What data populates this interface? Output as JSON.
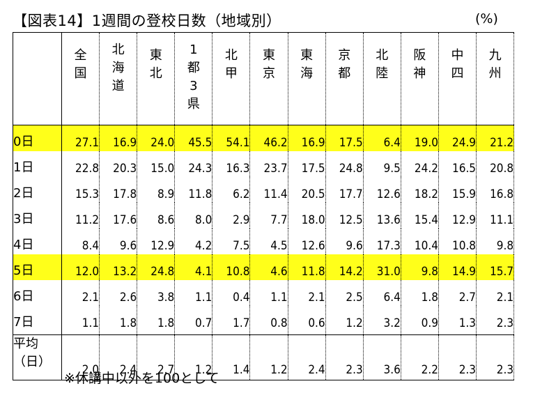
{
  "title": "【図表14】1週間の登校日数（地域別）",
  "unit": "(%)",
  "columns": [
    "全国",
    "北海道",
    "東北",
    "1都3県",
    "北甲",
    "東京",
    "東海",
    "京都",
    "北陸",
    "阪神",
    "中四",
    "九州"
  ],
  "rows": [
    {
      "label": "0日",
      "highlight": true,
      "values": [
        "27.1",
        "16.9",
        "24.0",
        "45.5",
        "54.1",
        "46.2",
        "16.9",
        "17.5",
        "6.4",
        "19.0",
        "24.9",
        "21.2"
      ]
    },
    {
      "label": "1日",
      "highlight": false,
      "values": [
        "22.8",
        "20.3",
        "15.0",
        "24.3",
        "16.3",
        "23.7",
        "17.5",
        "24.8",
        "9.5",
        "24.2",
        "16.5",
        "20.8"
      ]
    },
    {
      "label": "2日",
      "highlight": false,
      "values": [
        "15.3",
        "17.8",
        "8.9",
        "11.8",
        "6.2",
        "11.4",
        "20.5",
        "17.7",
        "12.6",
        "18.2",
        "15.9",
        "16.8"
      ]
    },
    {
      "label": "3日",
      "highlight": false,
      "values": [
        "11.2",
        "17.6",
        "8.6",
        "8.0",
        "2.9",
        "7.7",
        "18.0",
        "12.5",
        "13.6",
        "15.4",
        "12.9",
        "11.1"
      ]
    },
    {
      "label": "4日",
      "highlight": false,
      "values": [
        "8.4",
        "9.6",
        "12.9",
        "4.2",
        "7.5",
        "4.5",
        "12.6",
        "9.6",
        "17.3",
        "10.4",
        "10.8",
        "9.8"
      ]
    },
    {
      "label": "5日",
      "highlight": true,
      "values": [
        "12.0",
        "13.2",
        "24.8",
        "4.1",
        "10.8",
        "4.6",
        "11.8",
        "14.2",
        "31.0",
        "9.8",
        "14.9",
        "15.7"
      ]
    },
    {
      "label": "6日",
      "highlight": false,
      "values": [
        "2.1",
        "2.6",
        "3.8",
        "1.1",
        "0.4",
        "1.1",
        "2.1",
        "2.5",
        "6.4",
        "1.8",
        "2.7",
        "2.1"
      ]
    },
    {
      "label": "7日",
      "highlight": false,
      "values": [
        "1.1",
        "1.8",
        "1.8",
        "0.7",
        "1.7",
        "0.8",
        "0.6",
        "1.2",
        "3.2",
        "0.9",
        "1.3",
        "2.3"
      ]
    }
  ],
  "average": {
    "label_line1": "平均",
    "label_line2": "（日）",
    "values": [
      "2.0",
      "2.4",
      "2.7",
      "1.2",
      "1.4",
      "1.2",
      "2.4",
      "2.3",
      "3.6",
      "2.2",
      "2.3",
      "2.3"
    ]
  },
  "note": "※休講中以外を100として",
  "colors": {
    "highlight": "#ffff1a",
    "border": "#000000"
  }
}
